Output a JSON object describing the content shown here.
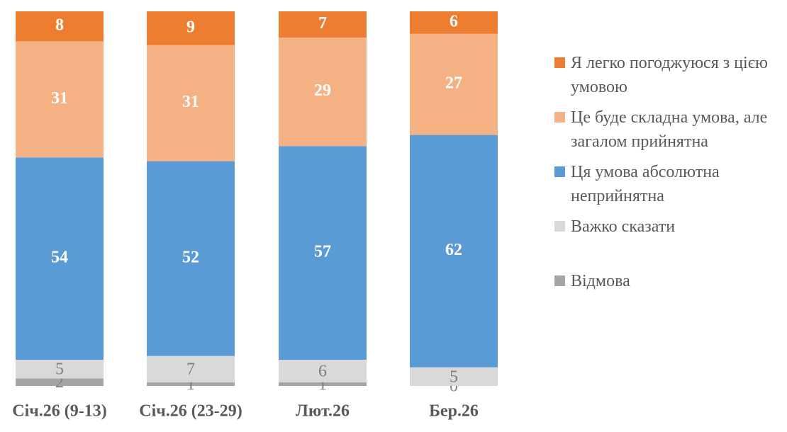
{
  "chart_data": {
    "type": "stacked_bar",
    "categories": [
      "Січ.26 (9-13)",
      "Січ.26 (23-29)",
      "Лют.26",
      "Бер.26"
    ],
    "series": [
      {
        "name": "Відмова",
        "color": "#a5a5a5",
        "values": [
          2,
          1,
          1,
          0
        ]
      },
      {
        "name": "Важко сказати",
        "color": "#d9d9d9",
        "values": [
          5,
          7,
          6,
          5
        ]
      },
      {
        "name": "Ця умова абсолютна неприйнятна",
        "color": "#5b9bd5",
        "values": [
          54,
          52,
          57,
          62
        ]
      },
      {
        "name": "Це буде складна умова, але загалом прийнятна",
        "color": "#f4b183",
        "values": [
          31,
          31,
          29,
          27
        ]
      },
      {
        "name": "Я легко погоджуюся з цією умовою",
        "color": "#ed7d31",
        "values": [
          8,
          9,
          7,
          6
        ]
      }
    ],
    "legend": "right"
  }
}
